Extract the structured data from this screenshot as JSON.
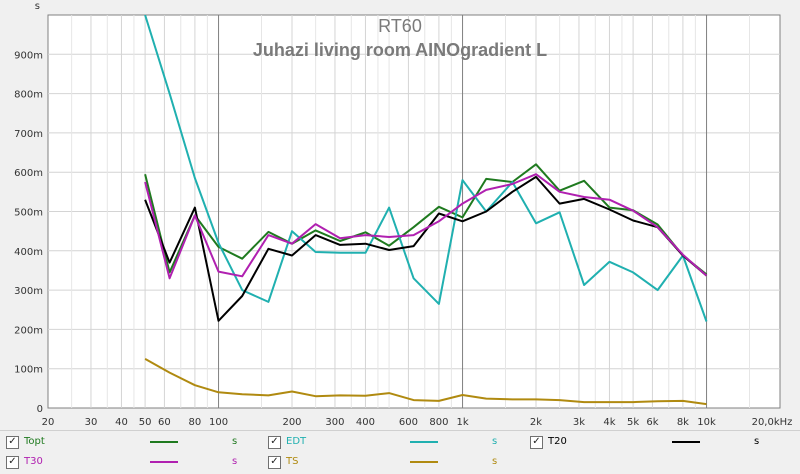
{
  "chart_data": {
    "type": "line",
    "title": "RT60",
    "subtitle": "Juhazi living room AINOgradient L",
    "ylabel": "s",
    "xscale": "log",
    "xlim": [
      20,
      20000
    ],
    "ylim": [
      0,
      1.0
    ],
    "grid": true,
    "legend_position": "bottom",
    "y_ticks": [
      0,
      0.1,
      0.2,
      0.3,
      0.4,
      0.5,
      0.6,
      0.7,
      0.8,
      0.9
    ],
    "y_tick_labels": [
      "0",
      "100m",
      "200m",
      "300m",
      "400m",
      "500m",
      "600m",
      "700m",
      "800m",
      "900m"
    ],
    "x_ticks": [
      20,
      30,
      40,
      50,
      60,
      80,
      100,
      200,
      300,
      400,
      600,
      800,
      1000,
      2000,
      3000,
      4000,
      5000,
      6000,
      8000,
      10000,
      20000
    ],
    "x_tick_labels": [
      "20",
      "30",
      "40",
      "50",
      "60",
      "80",
      "100",
      "200",
      "300",
      "400",
      "600",
      "800",
      "1k",
      "2k",
      "3k",
      "4k",
      "5k",
      "6k",
      "8k",
      "10k",
      "20,0kHz"
    ],
    "x_minor_ticks": [
      25,
      35,
      45,
      70,
      90,
      150,
      250,
      350,
      450,
      500,
      700,
      900,
      1500,
      2500,
      3500,
      4500,
      7000,
      9000,
      15000
    ],
    "x_major_lines": [
      100,
      1000,
      10000
    ],
    "x": [
      50,
      63,
      80,
      100,
      125,
      160,
      200,
      250,
      315,
      400,
      500,
      630,
      800,
      1000,
      1250,
      1600,
      2000,
      2500,
      3150,
      4000,
      5000,
      6300,
      8000,
      10000
    ],
    "series": [
      {
        "name": "Topt",
        "color": "#1f7a1f",
        "values": [
          0.595,
          0.345,
          0.49,
          0.41,
          0.38,
          0.448,
          0.418,
          0.452,
          0.425,
          0.447,
          0.413,
          0.46,
          0.512,
          0.485,
          0.583,
          0.575,
          0.62,
          0.553,
          0.578,
          0.51,
          0.503,
          0.467,
          0.388,
          0.34
        ]
      },
      {
        "name": "EDT",
        "color": "#20b0b0",
        "values": [
          1.0,
          0.8,
          0.585,
          0.42,
          0.3,
          0.27,
          0.45,
          0.397,
          0.395,
          0.395,
          0.51,
          0.33,
          0.265,
          0.58,
          0.5,
          0.575,
          0.47,
          0.498,
          0.313,
          0.372,
          0.345,
          0.3,
          0.388,
          0.22
        ]
      },
      {
        "name": "T20",
        "color": "#000000",
        "values": [
          0.53,
          0.37,
          0.51,
          0.222,
          0.285,
          0.405,
          0.388,
          0.44,
          0.415,
          0.418,
          0.402,
          0.412,
          0.495,
          0.475,
          0.5,
          0.55,
          0.588,
          0.52,
          0.532,
          0.505,
          0.477,
          0.46,
          0.388,
          0.337
        ]
      },
      {
        "name": "T30",
        "color": "#b020b0",
        "values": [
          0.575,
          0.33,
          0.49,
          0.347,
          0.335,
          0.44,
          0.418,
          0.468,
          0.432,
          0.44,
          0.435,
          0.44,
          0.475,
          0.52,
          0.555,
          0.57,
          0.595,
          0.55,
          0.537,
          0.53,
          0.502,
          0.46,
          0.39,
          0.337
        ]
      },
      {
        "name": "TS",
        "color": "#b08a10",
        "values": [
          0.125,
          0.09,
          0.058,
          0.04,
          0.035,
          0.032,
          0.042,
          0.03,
          0.032,
          0.031,
          0.038,
          0.02,
          0.018,
          0.033,
          0.024,
          0.022,
          0.022,
          0.02,
          0.015,
          0.015,
          0.015,
          0.017,
          0.018,
          0.01
        ]
      }
    ]
  },
  "legend": {
    "items": [
      {
        "label": "Topt",
        "unit": "s",
        "color": "#1f7a1f",
        "checked": "✓"
      },
      {
        "label": "EDT",
        "unit": "s",
        "color": "#20b0b0",
        "checked": "✓"
      },
      {
        "label": "T20",
        "unit": "s",
        "color": "#000000",
        "checked": "✓"
      },
      {
        "label": "T30",
        "unit": "s",
        "color": "#b020b0",
        "checked": "✓"
      },
      {
        "label": "TS",
        "unit": "s",
        "color": "#b08a10",
        "checked": "✓"
      }
    ]
  }
}
